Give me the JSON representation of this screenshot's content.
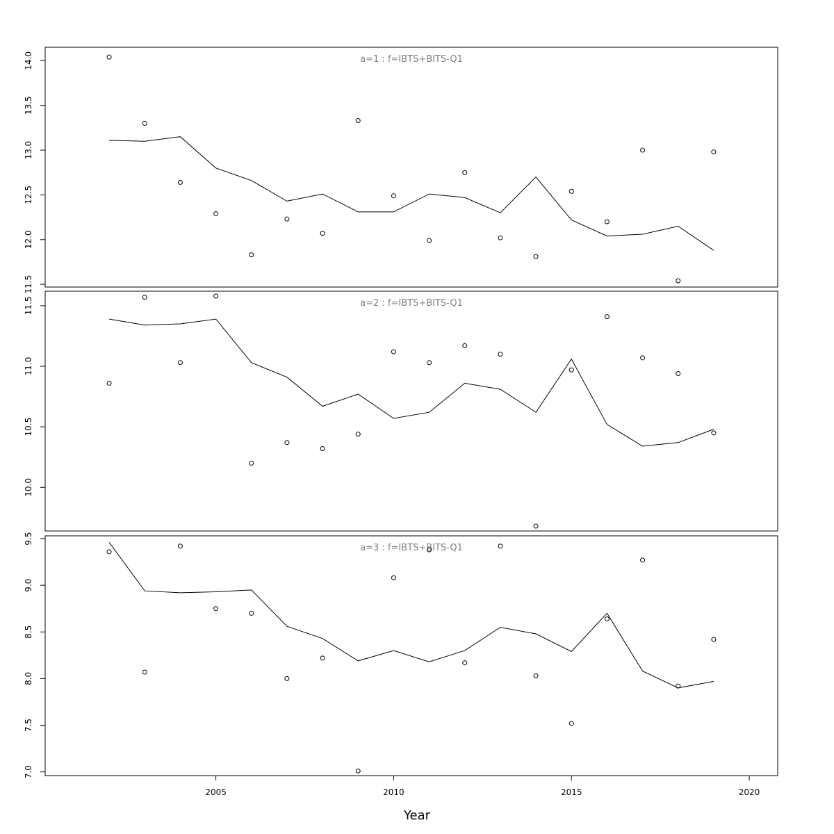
{
  "chart_data": {
    "type": "line",
    "xlabel": "Year",
    "xlim": [
      2000.2,
      2020.8
    ],
    "xticks": [
      2005,
      2010,
      2015,
      2020
    ],
    "x": [
      2002,
      2003,
      2004,
      2005,
      2006,
      2007,
      2008,
      2009,
      2010,
      2011,
      2012,
      2013,
      2014,
      2015,
      2016,
      2017,
      2018,
      2019
    ],
    "panels": [
      {
        "title": "a=1 : f=IBTS+BITS-Q1",
        "ylim": [
          11.47,
          14.15
        ],
        "yticks": [
          11.5,
          12.0,
          12.5,
          13.0,
          13.5,
          14.0
        ],
        "fit": [
          13.11,
          13.1,
          13.15,
          12.8,
          12.66,
          12.43,
          12.51,
          12.31,
          12.31,
          12.51,
          12.47,
          12.3,
          12.7,
          12.22,
          12.04,
          12.06,
          12.15,
          11.88
        ],
        "observed": [
          14.04,
          13.3,
          12.64,
          12.29,
          11.83,
          12.23,
          12.07,
          13.33,
          12.49,
          11.99,
          12.75,
          12.02,
          11.81,
          12.54,
          12.2,
          13.0,
          11.54,
          12.98
        ]
      },
      {
        "title": "a=2 : f=IBTS+BITS-Q1",
        "ylim": [
          9.64,
          11.62
        ],
        "yticks": [
          10.0,
          10.5,
          11.0,
          11.5
        ],
        "fit": [
          11.39,
          11.34,
          11.35,
          11.39,
          11.03,
          10.91,
          10.67,
          10.77,
          10.57,
          10.62,
          10.86,
          10.81,
          10.62,
          11.06,
          10.52,
          10.34,
          10.37,
          10.48
        ],
        "observed": [
          10.86,
          11.57,
          11.03,
          11.58,
          10.2,
          10.37,
          10.32,
          10.44,
          11.12,
          11.03,
          11.17,
          11.1,
          9.68,
          10.97,
          11.41,
          11.07,
          10.94,
          10.45
        ]
      },
      {
        "title": "a=3 : f=IBTS+BITS-Q1",
        "ylim": [
          6.96,
          9.53
        ],
        "yticks": [
          7.0,
          7.5,
          8.0,
          8.5,
          9.0,
          9.5
        ],
        "fit": [
          9.46,
          8.94,
          8.92,
          8.93,
          8.95,
          8.56,
          8.43,
          8.19,
          8.3,
          8.18,
          8.3,
          8.55,
          8.48,
          8.29,
          8.7,
          8.08,
          7.9,
          7.97
        ],
        "observed": [
          9.36,
          8.07,
          9.42,
          8.75,
          8.7,
          8.0,
          8.22,
          7.01,
          9.08,
          9.38,
          8.17,
          9.42,
          8.03,
          7.52,
          8.64,
          9.27,
          7.92,
          8.42
        ]
      }
    ]
  }
}
